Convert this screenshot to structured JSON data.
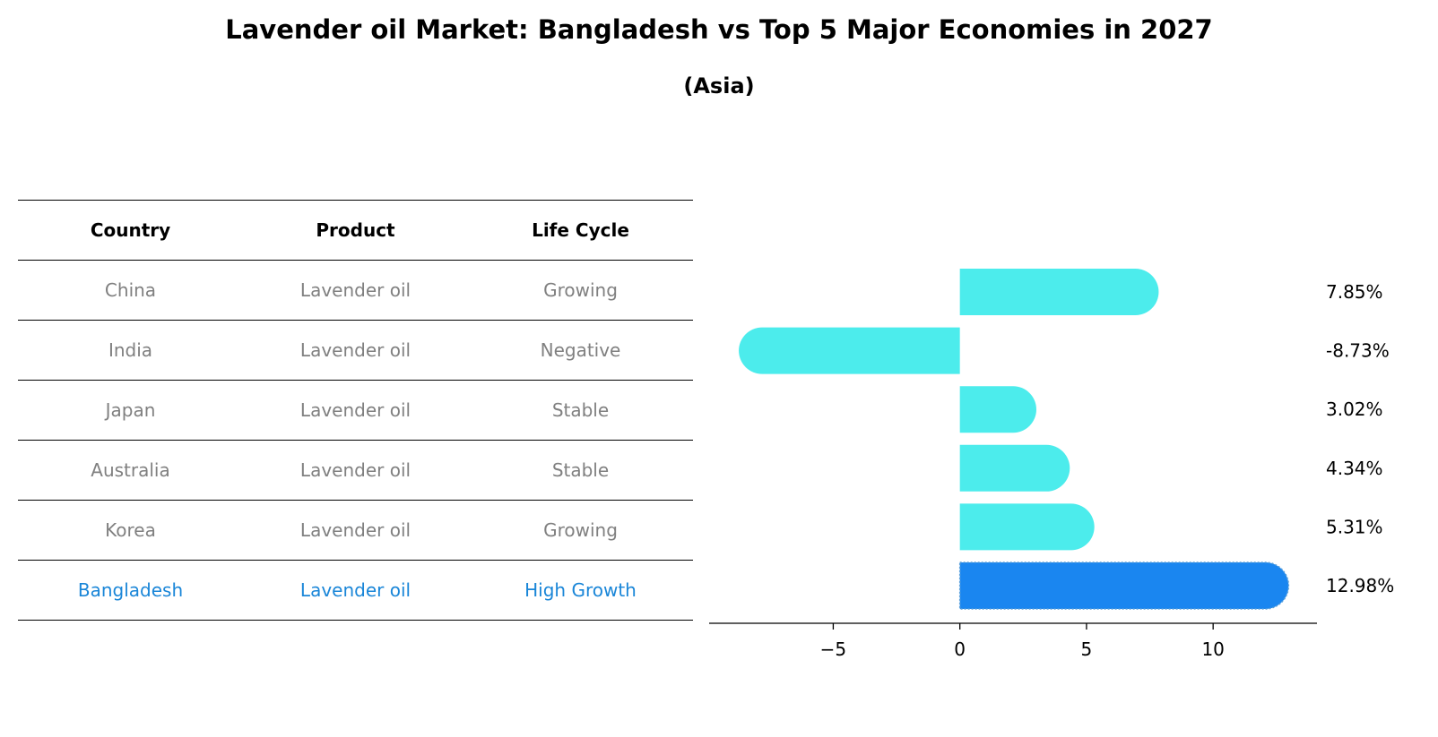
{
  "title": "Lavender oil Market: Bangladesh vs Top 5 Major Economies in 2027",
  "subtitle": "(Asia)",
  "table": {
    "headers": [
      "Country",
      "Product",
      "Life Cycle"
    ],
    "rows": [
      {
        "country": "China",
        "product": "Lavender oil",
        "life_cycle": "Growing"
      },
      {
        "country": "India",
        "product": "Lavender oil",
        "life_cycle": "Negative"
      },
      {
        "country": "Japan",
        "product": "Lavender oil",
        "life_cycle": "Stable"
      },
      {
        "country": "Australia",
        "product": "Lavender oil",
        "life_cycle": "Stable"
      },
      {
        "country": "Korea",
        "product": "Lavender oil",
        "life_cycle": "Growing"
      },
      {
        "country": "Bangladesh",
        "product": "Lavender oil",
        "life_cycle": "High Growth"
      }
    ]
  },
  "chart_data": {
    "type": "bar",
    "orientation": "horizontal",
    "categories": [
      "China",
      "India",
      "Japan",
      "Australia",
      "Korea",
      "Bangladesh"
    ],
    "values": [
      7.85,
      -8.73,
      3.02,
      4.34,
      5.31,
      12.98
    ],
    "value_labels": [
      "7.85%",
      "-8.73%",
      "3.02%",
      "4.34%",
      "5.31%",
      "12.98%"
    ],
    "highlight": "Bangladesh",
    "xlim": [
      -9.9,
      14.1
    ],
    "xticks": [
      -5,
      0,
      5,
      10
    ],
    "xtick_labels": [
      "−5",
      "0",
      "5",
      "10"
    ],
    "colors": {
      "default": "#4cecec",
      "highlight": "#1a86f0",
      "highlight_text": "#1a86d8",
      "muted_text": "#808080"
    }
  }
}
